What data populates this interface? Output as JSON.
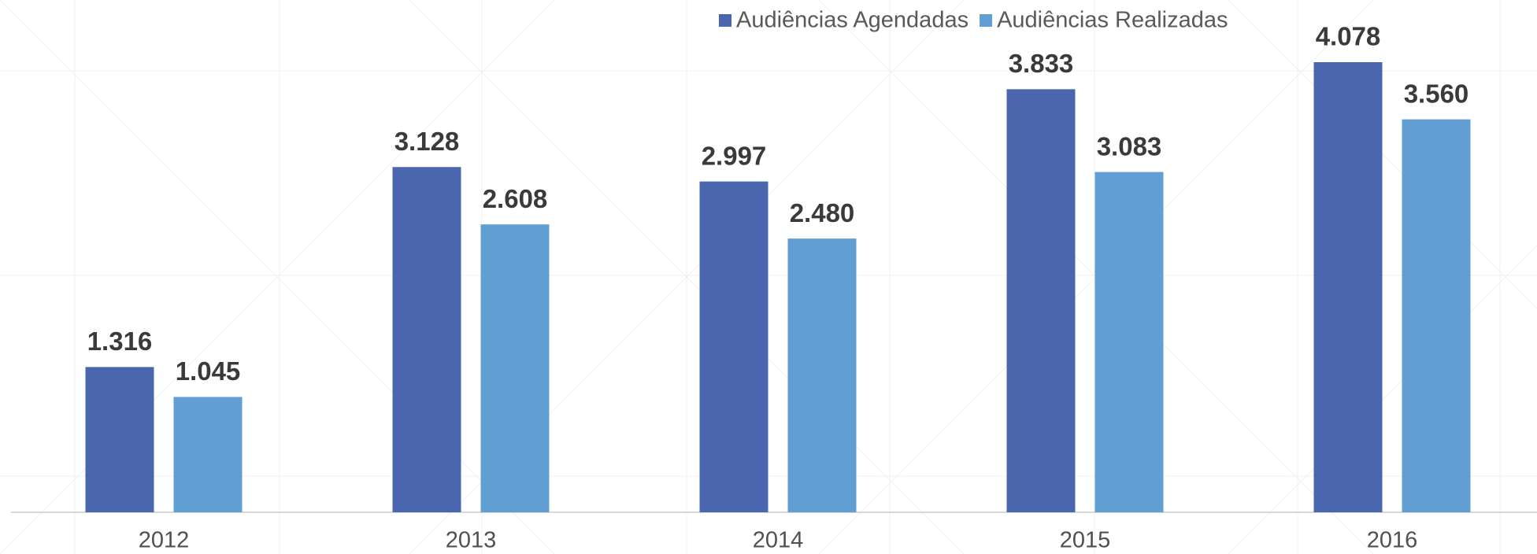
{
  "chart_data": {
    "type": "bar",
    "categories": [
      "2012",
      "2013",
      "2014",
      "2015",
      "2016"
    ],
    "series": [
      {
        "name": "Audiências Agendadas",
        "color": "#4a66ae",
        "values": [
          1316,
          3128,
          2997,
          3833,
          4078
        ],
        "value_labels": [
          "1.316",
          "3.128",
          "2.997",
          "3.833",
          "4.078"
        ]
      },
      {
        "name": "Audiências Realizadas",
        "color": "#619fd3",
        "values": [
          1045,
          2608,
          2480,
          3083,
          3560
        ],
        "value_labels": [
          "1.045",
          "2.608",
          "2.480",
          "3.083",
          "3.560"
        ]
      }
    ],
    "legend": "top"
  }
}
